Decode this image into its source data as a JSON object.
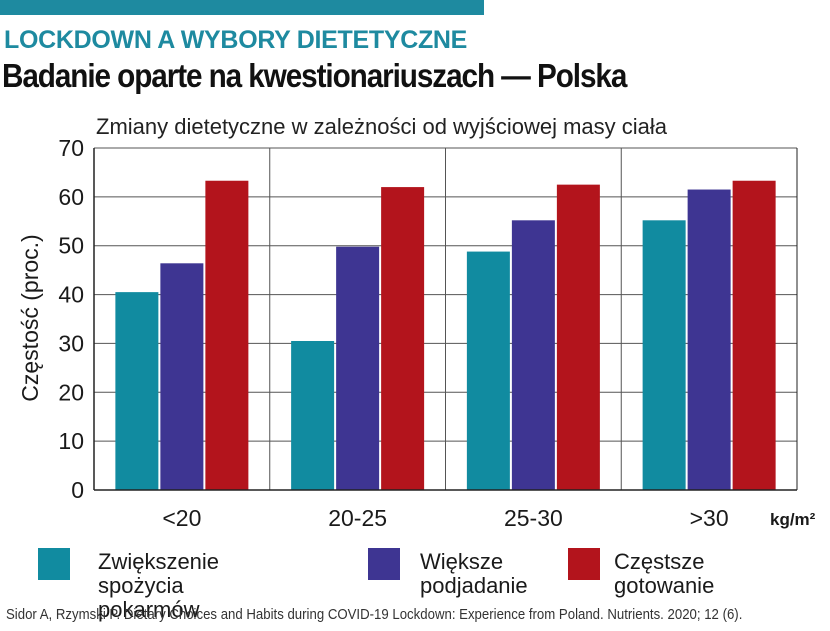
{
  "header": {
    "kicker": "LOCKDOWN A WYBORY DIETETYCZNE",
    "headline": "Badanie oparte na kwestionariuszach — Polska"
  },
  "chart_data": {
    "type": "bar",
    "title": "Zmiany dietetyczne w zależności od wyjściowej masy ciała",
    "ylabel": "Częstość (proc.)",
    "xunit": "kg/m²",
    "categories": [
      "<20",
      "20-25",
      "25-30",
      ">30"
    ],
    "ylim": [
      0,
      70
    ],
    "yticks": [
      0,
      10,
      20,
      30,
      40,
      50,
      60,
      70
    ],
    "grid": true,
    "series": [
      {
        "name": "Zwiększenie\nspożycia pokarmów",
        "color": "#118ba0",
        "values": [
          40.5,
          30.5,
          48.8,
          55.2
        ]
      },
      {
        "name": "Większe\npodjadanie",
        "color": "#3e3592",
        "values": [
          46.4,
          49.8,
          55.2,
          61.5
        ]
      },
      {
        "name": "Częstsze\ngotowanie",
        "color": "#b3141c",
        "values": [
          63.3,
          62.0,
          62.5,
          63.3
        ]
      }
    ]
  },
  "source": "Sidor A, Rzymski P. Dietary Choices and Habits during COVID-19 Lockdown: Experience from Poland. Nutrients. 2020; 12 (6)."
}
